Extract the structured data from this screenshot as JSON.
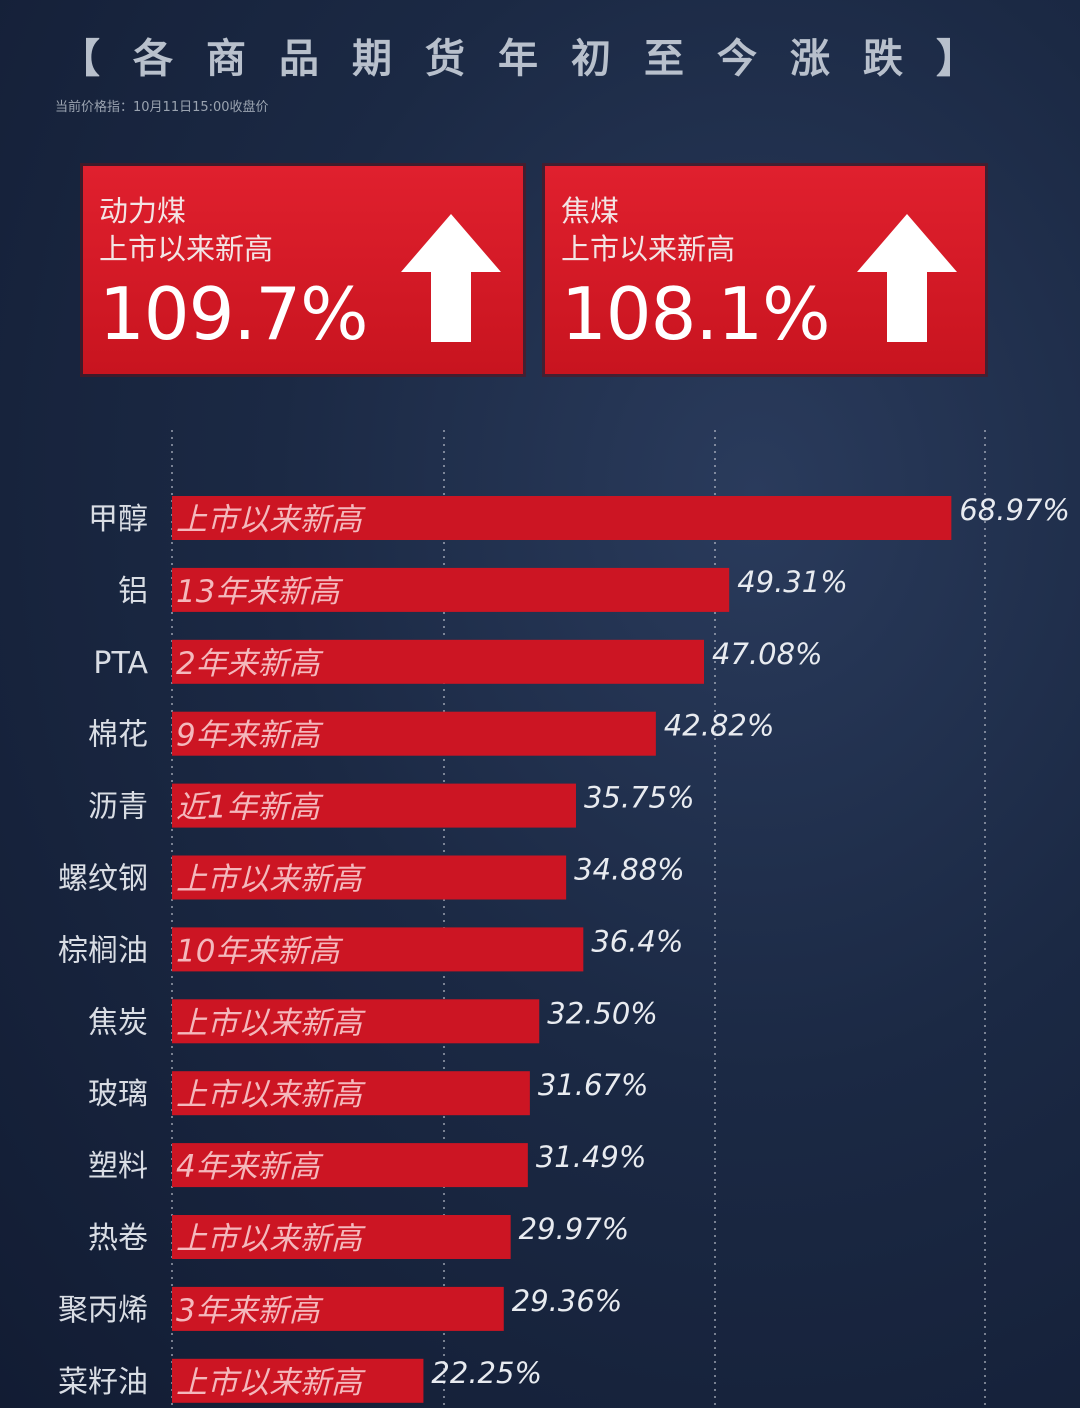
{
  "header": {
    "title": "【各商品期货年初至今涨跌】",
    "subtitle": "当前价格指：10月11日15:00收盘价"
  },
  "cards": [
    {
      "name": "动力煤",
      "desc": "上市以来新高",
      "value": "109.7%",
      "icon": "arrow-up-icon"
    },
    {
      "name": "焦煤",
      "desc": "上市以来新高",
      "value": "108.1%",
      "icon": "arrow-up-icon"
    }
  ],
  "colors": {
    "bar": "#cc1523",
    "card": "#d91a26",
    "background": "#1b2944"
  },
  "chart_data": {
    "type": "bar",
    "orientation": "horizontal",
    "grid": true,
    "categories": [
      "甲醇",
      "铝",
      "PTA",
      "棉花",
      "沥青",
      "螺纹钢",
      "棕榈油",
      "焦炭",
      "玻璃",
      "塑料",
      "热卷",
      "聚丙烯",
      "菜籽油"
    ],
    "values": [
      68.97,
      49.31,
      47.08,
      42.82,
      35.75,
      34.88,
      36.4,
      32.5,
      31.67,
      31.49,
      29.97,
      29.36,
      22.25
    ],
    "value_labels": [
      "68.97%",
      "49.31%",
      "47.08%",
      "42.82%",
      "35.75%",
      "34.88%",
      "36.4%",
      "32.50%",
      "31.67%",
      "31.49%",
      "29.97%",
      "29.36%",
      "22.25%"
    ],
    "bar_annotations": [
      "上市以来新高",
      "13年来新高",
      "2年来新高",
      "9年来新高",
      "近1年新高",
      "上市以来新高",
      "10年来新高",
      "上市以来新高",
      "上市以来新高",
      "4年来新高",
      "上市以来新高",
      "3年来新高",
      "上市以来新高"
    ]
  }
}
